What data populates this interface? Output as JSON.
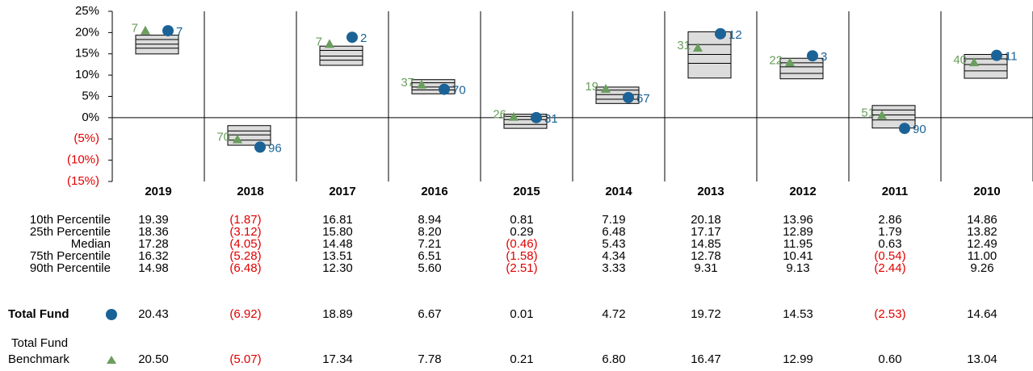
{
  "chart_data": {
    "type": "box",
    "categories": [
      "2019",
      "2018",
      "2017",
      "2016",
      "2015",
      "2014",
      "2013",
      "2012",
      "2011",
      "2010"
    ],
    "ylim": [
      -15,
      25
    ],
    "yticks": [
      {
        "value": 25,
        "label": "25%"
      },
      {
        "value": 20,
        "label": "20%"
      },
      {
        "value": 15,
        "label": "15%"
      },
      {
        "value": 10,
        "label": "10%"
      },
      {
        "value": 5,
        "label": "5%"
      },
      {
        "value": 0,
        "label": "0%"
      },
      {
        "value": -5,
        "label": "(5%)"
      },
      {
        "value": -10,
        "label": "(10%)"
      },
      {
        "value": -15,
        "label": "(15%)"
      }
    ],
    "box_color": "#dcdcdc",
    "rows": [
      {
        "name": "10th Percentile",
        "values": [
          19.39,
          -1.87,
          16.81,
          8.94,
          0.81,
          7.19,
          20.18,
          13.96,
          2.86,
          14.86
        ],
        "value_labels": [
          "19.39",
          "(1.87)",
          "16.81",
          "8.94",
          "0.81",
          "7.19",
          "20.18",
          "13.96",
          "2.86",
          "14.86"
        ]
      },
      {
        "name": "25th Percentile",
        "values": [
          18.36,
          -3.12,
          15.8,
          8.2,
          0.29,
          6.48,
          17.17,
          12.89,
          1.79,
          13.82
        ],
        "value_labels": [
          "18.36",
          "(3.12)",
          "15.80",
          "8.20",
          "0.29",
          "6.48",
          "17.17",
          "12.89",
          "1.79",
          "13.82"
        ]
      },
      {
        "name": "Median",
        "values": [
          17.28,
          -4.05,
          14.48,
          7.21,
          -0.46,
          5.43,
          14.85,
          11.95,
          0.63,
          12.49
        ],
        "value_labels": [
          "17.28",
          "(4.05)",
          "14.48",
          "7.21",
          "(0.46)",
          "5.43",
          "14.85",
          "11.95",
          "0.63",
          "12.49"
        ]
      },
      {
        "name": "75th Percentile",
        "values": [
          16.32,
          -5.28,
          13.51,
          6.51,
          -1.58,
          4.34,
          12.78,
          10.41,
          -0.54,
          11.0
        ],
        "value_labels": [
          "16.32",
          "(5.28)",
          "13.51",
          "6.51",
          "(1.58)",
          "4.34",
          "12.78",
          "10.41",
          "(0.54)",
          "11.00"
        ]
      },
      {
        "name": "90th Percentile",
        "values": [
          14.98,
          -6.48,
          12.3,
          5.6,
          -2.51,
          3.33,
          9.31,
          9.13,
          -2.44,
          9.26
        ],
        "value_labels": [
          "14.98",
          "(6.48)",
          "12.30",
          "5.60",
          "(2.51)",
          "3.33",
          "9.31",
          "9.13",
          "(2.44)",
          "9.26"
        ]
      }
    ],
    "fund": {
      "name": "Total Fund",
      "color": "#1b6396",
      "values": [
        20.43,
        -6.92,
        18.89,
        6.67,
        0.01,
        4.72,
        19.72,
        14.53,
        -2.53,
        14.64
      ],
      "value_labels": [
        "20.43",
        "(6.92)",
        "18.89",
        "6.67",
        "0.01",
        "4.72",
        "19.72",
        "14.53",
        "(2.53)",
        "14.64"
      ],
      "ranks": [
        7,
        96,
        2,
        70,
        31,
        67,
        12,
        3,
        90,
        11
      ]
    },
    "benchmark": {
      "name_lines": [
        "Total Fund",
        "Benchmark"
      ],
      "color": "#6a9e5e",
      "values": [
        20.5,
        -5.07,
        17.34,
        7.78,
        0.21,
        6.8,
        16.47,
        12.99,
        0.6,
        13.04
      ],
      "value_labels": [
        "20.50",
        "(5.07)",
        "17.34",
        "7.78",
        "0.21",
        "6.80",
        "16.47",
        "12.99",
        "0.60",
        "13.04"
      ],
      "ranks": [
        7,
        70,
        7,
        37,
        26,
        19,
        31,
        22,
        51,
        40
      ]
    }
  }
}
